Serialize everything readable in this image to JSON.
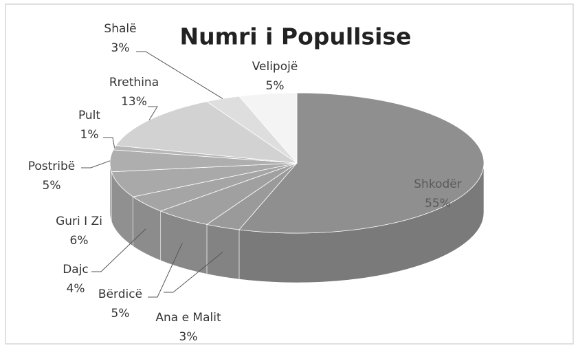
{
  "chart_data": {
    "type": "pie3d",
    "title": "Numri i Popullsise",
    "categories": [
      "Shkodër",
      "Ana e Malit",
      "Bërdicë",
      "Dajc",
      "Guri I Zi",
      "Postribë",
      "Pult",
      "Rrethina",
      "Shalë",
      "Velipojë"
    ],
    "values": [
      55,
      3,
      5,
      4,
      6,
      5,
      1,
      13,
      3,
      5
    ],
    "value_labels": [
      "55%",
      "3%",
      "5%",
      "4%",
      "6%",
      "5%",
      "1%",
      "13%",
      "3%",
      "5%"
    ],
    "colors": [
      "#8f8f8f",
      "#9a9a9a",
      "#a0a0a0",
      "#a5a5a5",
      "#a9a9a9",
      "#aeaeae",
      "#b6b6b6",
      "#d2d2d2",
      "#dedede",
      "#f4f4f4"
    ]
  }
}
